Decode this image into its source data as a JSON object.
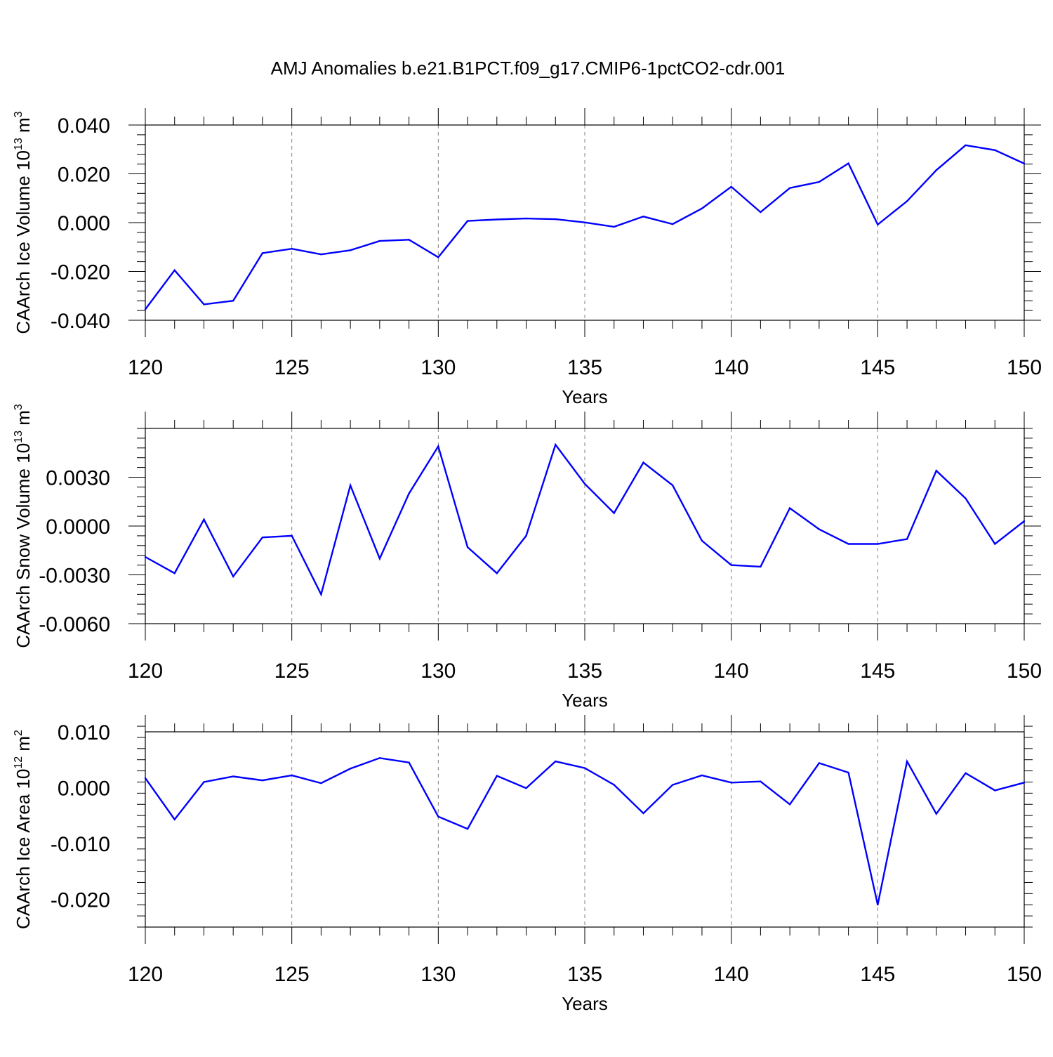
{
  "title": "AMJ Anomalies b.e21.B1PCT.f09_g17.CMIP6-1pctCO2-cdr.001",
  "colors": {
    "line": "#0000ff",
    "axis": "#000000",
    "grid": "#808080"
  },
  "chart_data": [
    {
      "type": "line",
      "ylabel": {
        "text": "CAArch Ice Volume 10",
        "exponent": "13",
        "unit": " m",
        "unit_exponent": "3"
      },
      "xlabel": "Years",
      "xlim": [
        120,
        150
      ],
      "ylim": [
        -0.04,
        0.04
      ],
      "x_ticks": [
        "120",
        "125",
        "130",
        "135",
        "140",
        "145",
        "150"
      ],
      "y_ticks": [
        {
          "v": 0.04,
          "label": "0.040"
        },
        {
          "v": 0.02,
          "label": "0.020"
        },
        {
          "v": 0.0,
          "label": "0.000"
        },
        {
          "v": -0.02,
          "label": "-0.020"
        },
        {
          "v": -0.04,
          "label": "-0.040"
        }
      ],
      "grid": "vertical dashed at 125, 130, 135, 140, 145",
      "x": [
        120,
        121,
        122,
        123,
        124,
        125,
        126,
        127,
        128,
        129,
        130,
        131,
        132,
        133,
        134,
        135,
        136,
        137,
        138,
        139,
        140,
        141,
        142,
        143,
        144,
        145,
        146,
        147,
        148,
        149,
        150
      ],
      "values": [
        -0.0355,
        -0.0195,
        -0.0335,
        -0.032,
        -0.0125,
        -0.0107,
        -0.013,
        -0.0113,
        -0.0075,
        -0.007,
        -0.0142,
        0.0007,
        0.0013,
        0.0017,
        0.0014,
        0.0001,
        -0.0017,
        0.0025,
        -0.0006,
        0.0058,
        0.0147,
        0.0043,
        0.0142,
        0.0167,
        0.0243,
        -0.0008,
        0.0088,
        0.0215,
        0.0317,
        0.0297,
        0.0242
      ]
    },
    {
      "type": "line",
      "ylabel": {
        "text": "CAArch Snow Volume 10",
        "exponent": "13",
        "unit": " m",
        "unit_exponent": "3"
      },
      "xlabel": "Years",
      "xlim": [
        120,
        150
      ],
      "ylim": [
        -0.006,
        0.006
      ],
      "x_ticks": [
        "120",
        "125",
        "130",
        "135",
        "140",
        "145",
        "150"
      ],
      "y_ticks": [
        {
          "v": 0.003,
          "label": "0.0030"
        },
        {
          "v": 0.0,
          "label": "0.0000"
        },
        {
          "v": -0.003,
          "label": "-0.0030"
        },
        {
          "v": -0.006,
          "label": "-0.0060"
        }
      ],
      "grid": "vertical dashed at 125, 130, 135, 140, 145",
      "x": [
        120,
        121,
        122,
        123,
        124,
        125,
        126,
        127,
        128,
        129,
        130,
        131,
        132,
        133,
        134,
        135,
        136,
        137,
        138,
        139,
        140,
        141,
        142,
        143,
        144,
        145,
        146,
        147,
        148,
        149,
        150
      ],
      "values": [
        -0.0019,
        -0.0029,
        0.0004,
        -0.0031,
        -0.0007,
        -0.0006,
        -0.0042,
        0.0025,
        -0.002,
        0.002,
        0.0049,
        -0.0013,
        -0.0029,
        -0.0006,
        0.005,
        0.0026,
        0.0008,
        0.0039,
        0.0025,
        -0.0009,
        -0.0024,
        -0.0025,
        0.0011,
        -0.0002,
        -0.0011,
        -0.0011,
        -0.0008,
        0.0034,
        0.0017,
        -0.0011,
        0.0003
      ]
    },
    {
      "type": "line",
      "ylabel": {
        "text": "CAArch Ice Area 10",
        "exponent": "12",
        "unit": " m",
        "unit_exponent": "2"
      },
      "xlabel": "Years",
      "xlim": [
        120,
        150
      ],
      "ylim": [
        -0.025,
        0.01
      ],
      "x_ticks": [
        "120",
        "125",
        "130",
        "135",
        "140",
        "145",
        "150"
      ],
      "y_ticks": [
        {
          "v": 0.01,
          "label": "0.010"
        },
        {
          "v": 0.0,
          "label": "0.000"
        },
        {
          "v": -0.01,
          "label": "-0.010"
        },
        {
          "v": -0.02,
          "label": "-0.020"
        }
      ],
      "grid": "vertical dashed at 125, 130, 135, 140, 145",
      "x": [
        120,
        121,
        122,
        123,
        124,
        125,
        126,
        127,
        128,
        129,
        130,
        131,
        132,
        133,
        134,
        135,
        136,
        137,
        138,
        139,
        140,
        141,
        142,
        143,
        144,
        145,
        146,
        147,
        148,
        149,
        150
      ],
      "values": [
        0.0017,
        -0.0057,
        0.001,
        0.002,
        0.0013,
        0.0022,
        0.0008,
        0.0034,
        0.0053,
        0.0045,
        -0.0052,
        -0.0074,
        0.0021,
        -0.0001,
        0.0047,
        0.0035,
        0.0005,
        -0.0046,
        0.0005,
        0.0022,
        0.0009,
        0.0011,
        -0.003,
        0.0044,
        0.0027,
        -0.021,
        0.0047,
        -0.0047,
        0.0026,
        -0.0005,
        0.0009
      ]
    }
  ]
}
